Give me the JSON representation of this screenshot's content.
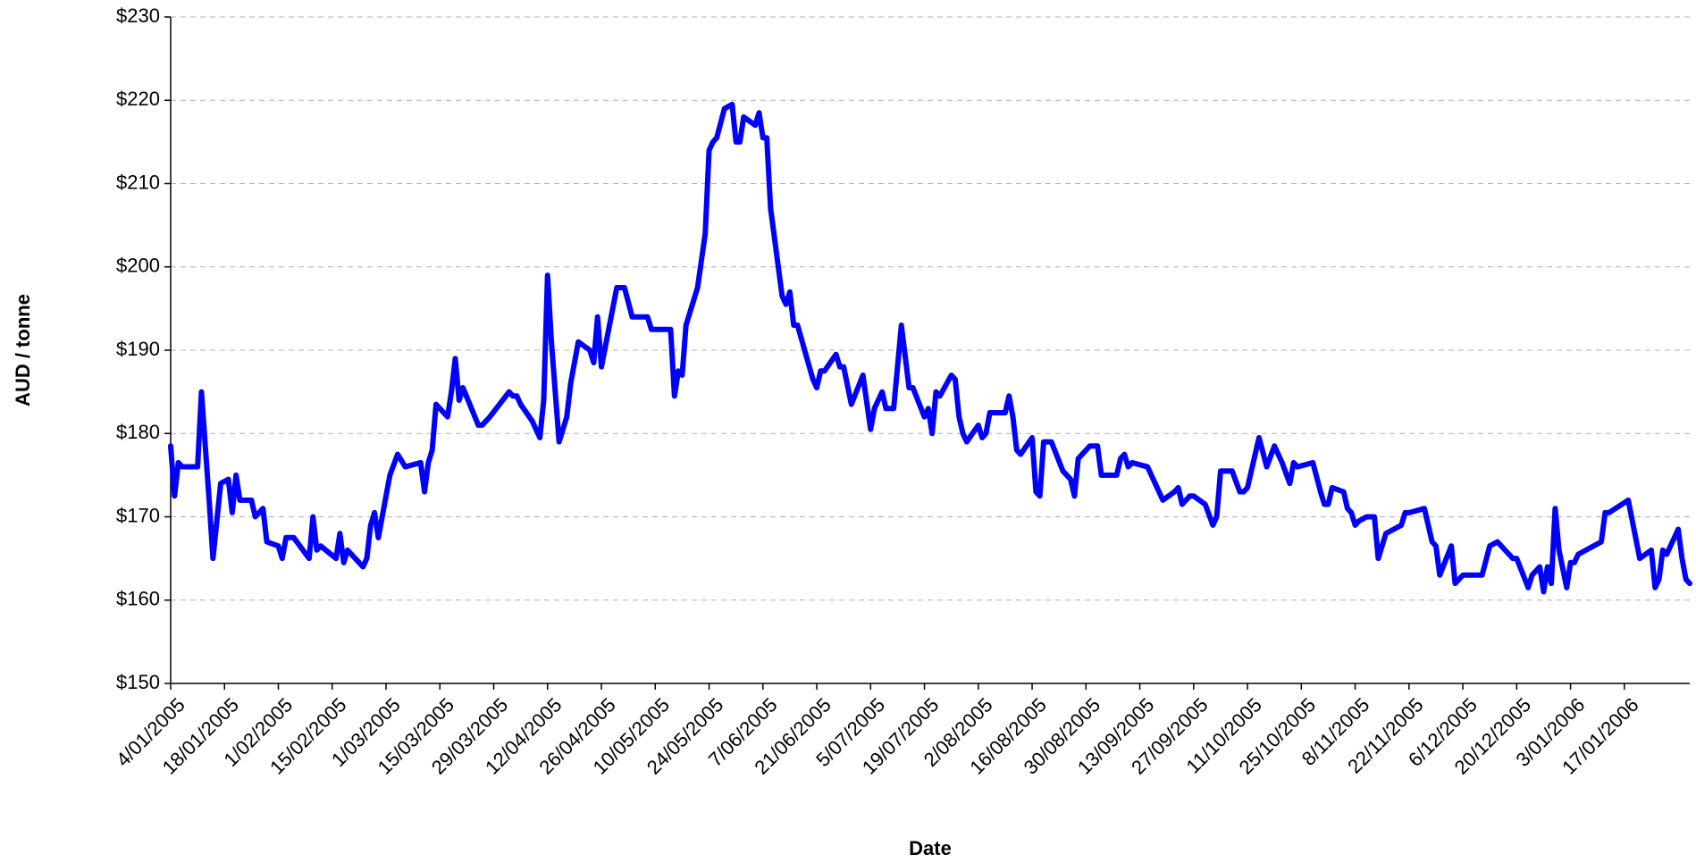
{
  "chart_data": {
    "type": "line",
    "x_label": "Date",
    "y_label": "AUD / tonne",
    "color": "#0000ff",
    "grid": true,
    "xlim": [
      "4/01/2005",
      "3/02/2006"
    ],
    "xticks": [
      "4/01/2005",
      "18/01/2005",
      "1/02/2005",
      "15/02/2005",
      "1/03/2005",
      "15/03/2005",
      "29/03/2005",
      "12/04/2005",
      "26/04/2005",
      "10/05/2005",
      "24/05/2005",
      "7/06/2005",
      "21/06/2005",
      "5/07/2005",
      "19/07/2005",
      "2/08/2005",
      "16/08/2005",
      "30/08/2005",
      "13/09/2005",
      "27/09/2005",
      "11/10/2005",
      "25/10/2005",
      "8/11/2005",
      "22/11/2005",
      "6/12/2005",
      "20/12/2005",
      "3/01/2006",
      "17/01/2006"
    ],
    "ylim": [
      150,
      230
    ],
    "yticks": [
      {
        "value": 150,
        "label": "$150"
      },
      {
        "value": 160,
        "label": "$160"
      },
      {
        "value": 170,
        "label": "$170"
      },
      {
        "value": 180,
        "label": "$180"
      },
      {
        "value": 190,
        "label": "$190"
      },
      {
        "value": 200,
        "label": "$200"
      },
      {
        "value": 210,
        "label": "$210"
      },
      {
        "value": 220,
        "label": "$220"
      },
      {
        "value": 230,
        "label": "$230"
      }
    ],
    "x": [
      "4/01/2005",
      "5/01/2005",
      "6/01/2005",
      "7/01/2005",
      "11/01/2005",
      "12/01/2005",
      "14/01/2005",
      "15/01/2005",
      "17/01/2005",
      "19/01/2005",
      "20/01/2005",
      "21/01/2005",
      "22/01/2005",
      "25/01/2005",
      "26/01/2005",
      "28/01/2005",
      "29/01/2005",
      "1/02/2005",
      "2/02/2005",
      "3/02/2005",
      "5/02/2005",
      "9/02/2005",
      "10/02/2005",
      "11/02/2005",
      "12/02/2005",
      "16/02/2005",
      "17/02/2005",
      "18/02/2005",
      "19/02/2005",
      "23/02/2005",
      "24/02/2005",
      "25/02/2005",
      "26/02/2005",
      "27/02/2005",
      "2/03/2005",
      "4/03/2005",
      "6/03/2005",
      "10/03/2005",
      "11/03/2005",
      "12/03/2005",
      "13/03/2005",
      "14/03/2005",
      "17/03/2005",
      "18/03/2005",
      "19/03/2005",
      "20/03/2005",
      "21/03/2005",
      "25/03/2005",
      "26/03/2005",
      "28/03/2005",
      "2/04/2005",
      "3/04/2005",
      "4/04/2005",
      "5/04/2005",
      "8/04/2005",
      "9/04/2005",
      "10/04/2005",
      "11/04/2005",
      "12/04/2005",
      "13/04/2005",
      "15/04/2005",
      "16/04/2005",
      "17/04/2005",
      "18/04/2005",
      "20/04/2005",
      "23/04/2005",
      "24/04/2005",
      "25/04/2005",
      "26/04/2005",
      "30/04/2005",
      "2/05/2005",
      "4/05/2005",
      "8/05/2005",
      "9/05/2005",
      "14/05/2005",
      "15/05/2005",
      "16/05/2005",
      "17/05/2005",
      "18/05/2005",
      "21/05/2005",
      "23/05/2005",
      "24/05/2005",
      "25/05/2005",
      "26/05/2005",
      "28/05/2005",
      "30/05/2005",
      "31/05/2005",
      "1/06/2005",
      "2/06/2005",
      "5/06/2005",
      "6/06/2005",
      "7/06/2005",
      "8/06/2005",
      "9/06/2005",
      "12/06/2005",
      "13/06/2005",
      "14/06/2005",
      "15/06/2005",
      "16/06/2005",
      "20/06/2005",
      "21/06/2005",
      "22/06/2005",
      "23/06/2005",
      "26/06/2005",
      "27/06/2005",
      "28/06/2005",
      "30/06/2005",
      "3/07/2005",
      "5/07/2005",
      "6/07/2005",
      "8/07/2005",
      "9/07/2005",
      "11/07/2005",
      "13/07/2005",
      "15/07/2005",
      "16/07/2005",
      "19/07/2005",
      "20/07/2005",
      "21/07/2005",
      "22/07/2005",
      "23/07/2005",
      "26/07/2005",
      "27/07/2005",
      "28/07/2005",
      "29/07/2005",
      "30/07/2005",
      "2/08/2005",
      "3/08/2005",
      "4/08/2005",
      "5/08/2005",
      "9/08/2005",
      "10/08/2005",
      "11/08/2005",
      "12/08/2005",
      "13/08/2005",
      "16/08/2005",
      "17/08/2005",
      "18/08/2005",
      "19/08/2005",
      "21/08/2005",
      "24/08/2005",
      "26/08/2005",
      "27/08/2005",
      "28/08/2005",
      "31/08/2005",
      "2/09/2005",
      "3/09/2005",
      "7/09/2005",
      "8/09/2005",
      "9/09/2005",
      "10/09/2005",
      "11/09/2005",
      "15/09/2005",
      "19/09/2005",
      "22/09/2005",
      "23/09/2005",
      "24/09/2005",
      "26/09/2005",
      "27/09/2005",
      "30/09/2005",
      "2/10/2005",
      "3/10/2005",
      "4/10/2005",
      "7/10/2005",
      "9/10/2005",
      "10/10/2005",
      "11/10/2005",
      "14/10/2005",
      "16/10/2005",
      "18/10/2005",
      "20/10/2005",
      "22/10/2005",
      "23/10/2005",
      "24/10/2005",
      "28/10/2005",
      "30/10/2005",
      "31/10/2005",
      "1/11/2005",
      "2/11/2005",
      "5/11/2005",
      "6/11/2005",
      "7/11/2005",
      "8/11/2005",
      "9/11/2005",
      "11/11/2005",
      "13/11/2005",
      "14/11/2005",
      "16/11/2005",
      "20/11/2005",
      "21/11/2005",
      "22/11/2005",
      "26/11/2005",
      "28/11/2005",
      "29/11/2005",
      "30/11/2005",
      "3/12/2005",
      "4/12/2005",
      "5/12/2005",
      "6/12/2005",
      "11/12/2005",
      "13/12/2005",
      "15/12/2005",
      "19/12/2005",
      "20/12/2005",
      "23/12/2005",
      "24/12/2005",
      "26/12/2005",
      "27/12/2005",
      "28/12/2005",
      "29/12/2005",
      "30/12/2005",
      "31/12/2005",
      "2/01/2006",
      "3/01/2006",
      "4/01/2006",
      "5/01/2006",
      "11/01/2006",
      "12/01/2006",
      "13/01/2006",
      "18/01/2006",
      "21/01/2006",
      "24/01/2006",
      "25/01/2006",
      "26/01/2006",
      "27/01/2006",
      "28/01/2006",
      "31/01/2006",
      "1/02/2006",
      "2/02/2006",
      "3/02/2006"
    ],
    "values": [
      178.5,
      172.5,
      176.5,
      176,
      176,
      185,
      172,
      165,
      174,
      174.5,
      170.5,
      175,
      172,
      172,
      170,
      171,
      167,
      166.5,
      165,
      167.5,
      167.5,
      165,
      170,
      166,
      166.5,
      165,
      168,
      164.5,
      166,
      164,
      165,
      169,
      170.5,
      167.5,
      175,
      177.5,
      176,
      176.5,
      173,
      176.5,
      178,
      183.5,
      182,
      185,
      189,
      184,
      185.5,
      181,
      181,
      182,
      185,
      184.5,
      184.5,
      183.5,
      181.5,
      180.5,
      179.5,
      184,
      199,
      191,
      179,
      180.5,
      182,
      186,
      191,
      190,
      188.5,
      194,
      188,
      197.5,
      197.5,
      194,
      194,
      192.5,
      192.5,
      184.5,
      187.5,
      187,
      193,
      197.5,
      204,
      214,
      215,
      215.5,
      219,
      219.5,
      215,
      215,
      218,
      217,
      218.5,
      215.5,
      215.5,
      207,
      196.5,
      195.5,
      197,
      193,
      193,
      186.5,
      185.5,
      187.5,
      187.5,
      189.5,
      188,
      188,
      183.5,
      187,
      180.5,
      183,
      185,
      183,
      183,
      193,
      185.5,
      185.5,
      182,
      183,
      180,
      185,
      184.5,
      187,
      186.5,
      182,
      180,
      179,
      181,
      179.5,
      180,
      182.5,
      182.5,
      184.5,
      182,
      178,
      177.5,
      179.5,
      173,
      172.5,
      179,
      179,
      175.5,
      174.5,
      172.5,
      177,
      178.5,
      178.5,
      175,
      175,
      177,
      177.5,
      176,
      176.5,
      176,
      172,
      173,
      173.5,
      171.5,
      172.5,
      172.5,
      171.5,
      169,
      170,
      175.5,
      175.5,
      173,
      173,
      173.5,
      179.5,
      176,
      178.5,
      176.5,
      174,
      176.5,
      176,
      176.5,
      173,
      171.5,
      171.5,
      173.5,
      173,
      171,
      170.5,
      169,
      169.5,
      170,
      170,
      165,
      168,
      169,
      170.5,
      170.5,
      171,
      167,
      166.5,
      163,
      166.5,
      162,
      162.5,
      163,
      163,
      166.5,
      167,
      165,
      165,
      161.5,
      163,
      164,
      161,
      164,
      162,
      171,
      166,
      161.5,
      164.5,
      164.5,
      165.5,
      167,
      170.5,
      170.5,
      172,
      165,
      166,
      161.5,
      162.5,
      166,
      165.5,
      168.5,
      165,
      162.5,
      162
    ]
  }
}
